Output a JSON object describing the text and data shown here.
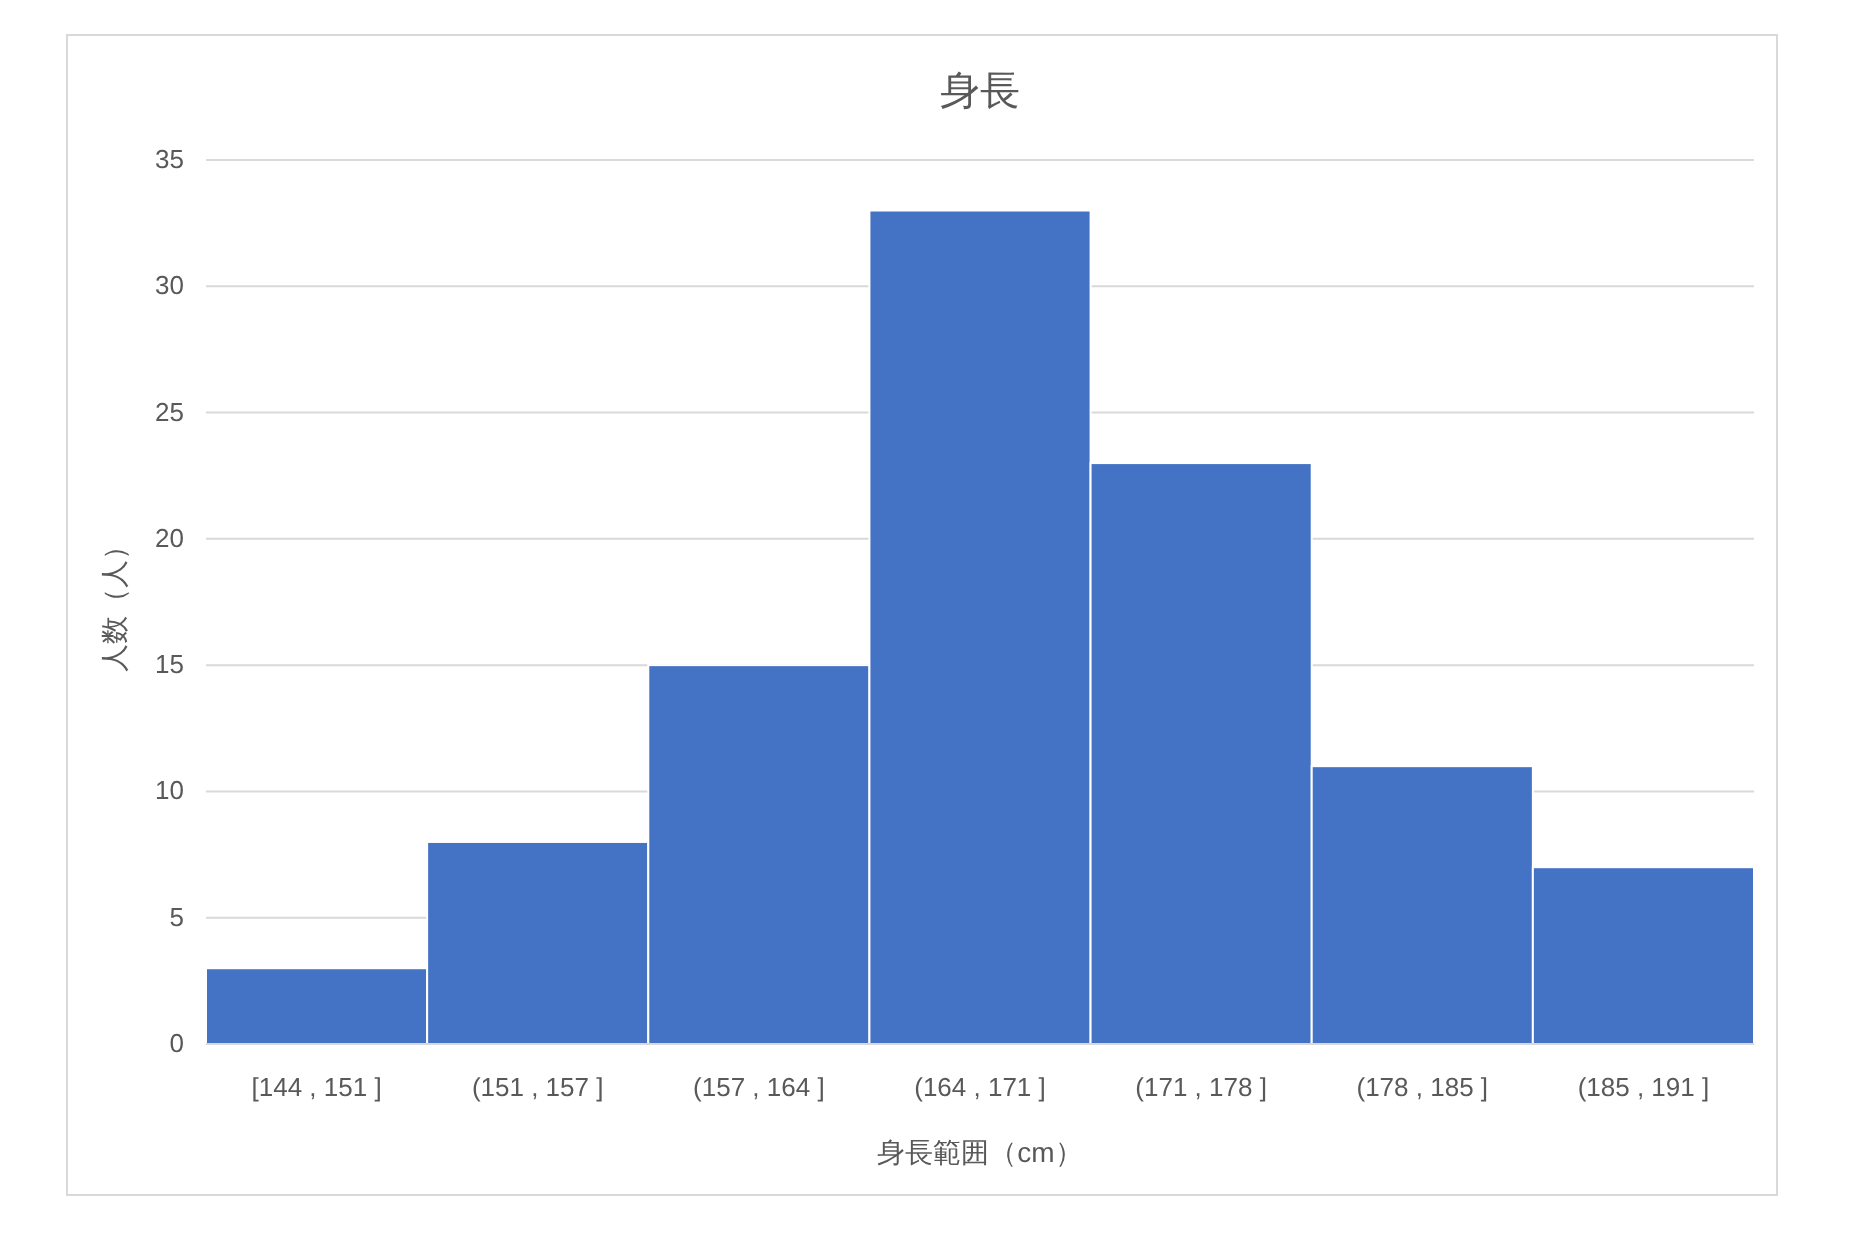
{
  "chart_data": {
    "type": "bar",
    "title": "身長",
    "xlabel": "身長範囲（cm）",
    "ylabel": "人数（人）",
    "categories": [
      "[144 , 151 ]",
      "(151 , 157 ]",
      "(157 , 164 ]",
      "(164 , 171 ]",
      "(171 , 178 ]",
      "(178 , 185 ]",
      "(185 , 191 ]"
    ],
    "values": [
      3,
      8,
      15,
      33,
      23,
      11,
      7
    ],
    "color": "#4472c4",
    "ylim": [
      0,
      35
    ],
    "yticks": [
      0,
      5,
      10,
      15,
      20,
      25,
      30,
      35
    ],
    "grid": "y"
  }
}
